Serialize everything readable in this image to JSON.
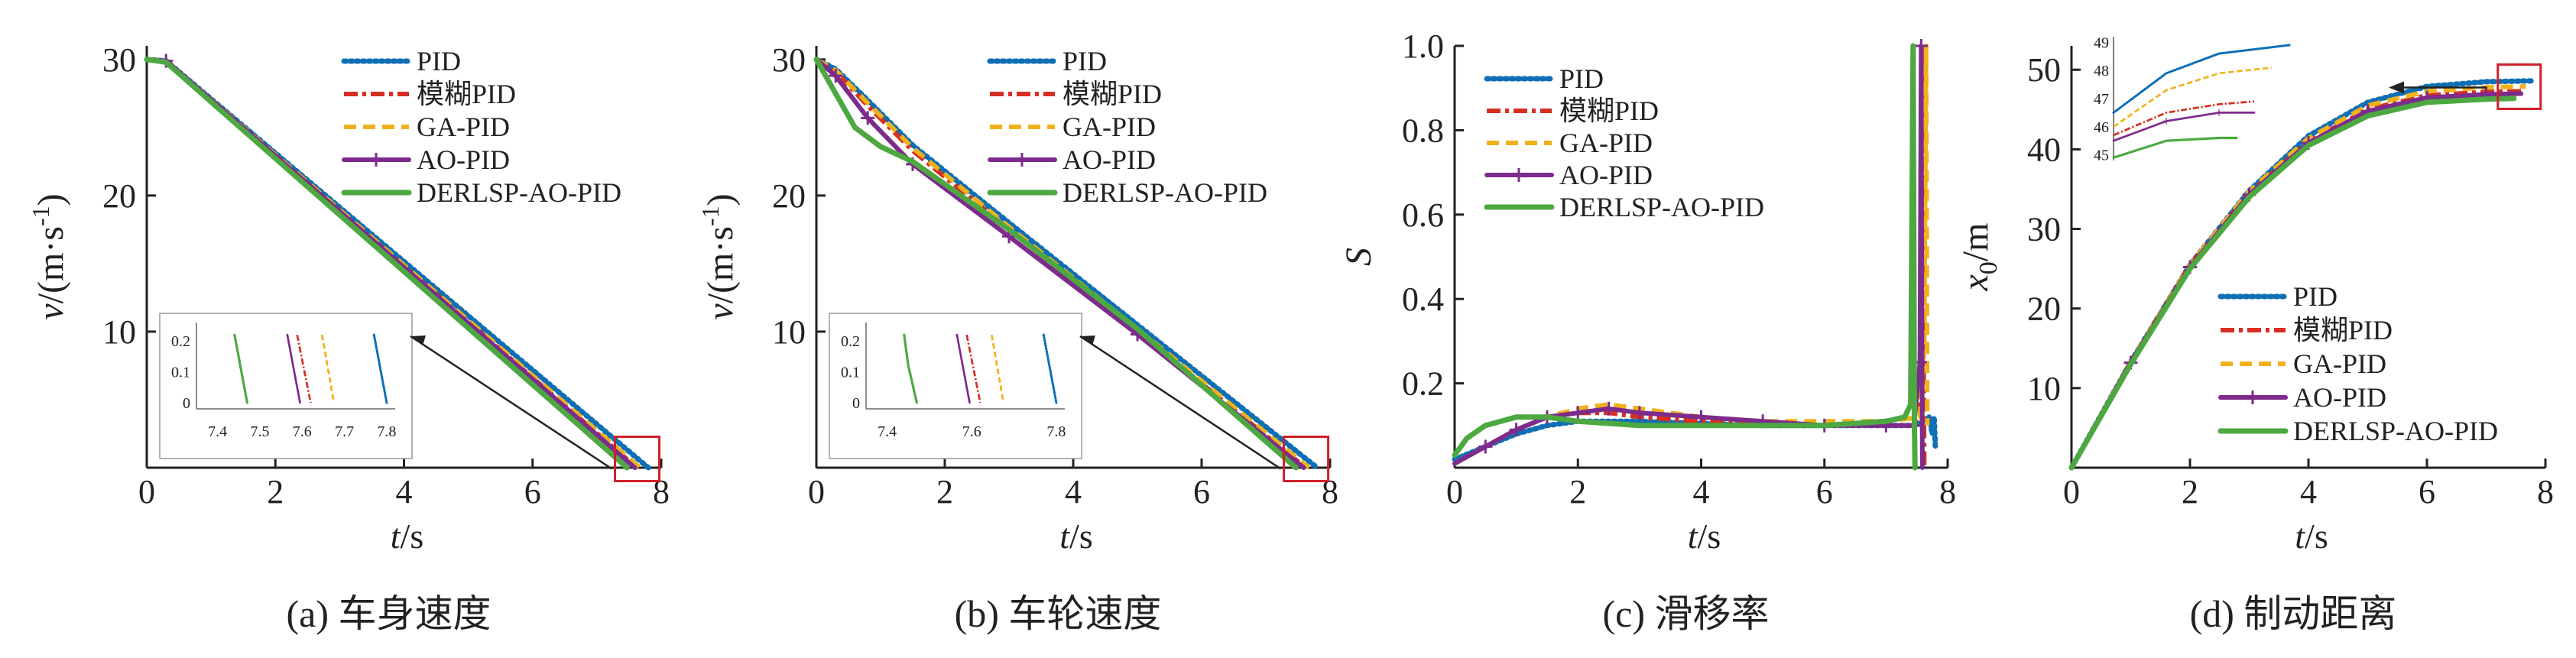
{
  "colors": {
    "PID": "#0e6fb5",
    "模糊PID": "#d62f22",
    "GA-PID": "#f0b11a",
    "AO-PID": "#7d2b8c",
    "DERLSP-AO-PID": "#4da841",
    "box": "#d0202a",
    "axis": "#222222"
  },
  "chart_data": [
    {
      "id": "a",
      "type": "line",
      "caption": "(a) 车身速度",
      "xlabel": "t/s",
      "ylabel": "v/(m·s-1)",
      "xlim": [
        0,
        8
      ],
      "ylim": [
        0,
        31
      ],
      "xticks": [
        "0",
        "2",
        "4",
        "6",
        "8"
      ],
      "yticks": [
        "10",
        "20",
        "30"
      ],
      "legend": {
        "position": "top-right",
        "entries": [
          "PID",
          "模糊PID",
          "GA-PID",
          "AO-PID",
          "DERLSP-AO-PID"
        ]
      },
      "series": [
        {
          "name": "PID",
          "x": [
            0,
            0.3,
            7.8
          ],
          "y": [
            30,
            29.9,
            0
          ]
        },
        {
          "name": "模糊PID",
          "x": [
            0,
            0.3,
            7.62
          ],
          "y": [
            30,
            29.9,
            0
          ]
        },
        {
          "name": "GA-PID",
          "x": [
            0,
            0.3,
            7.67
          ],
          "y": [
            30,
            29.9,
            0
          ]
        },
        {
          "name": "AO-PID",
          "x": [
            0,
            0.3,
            7.59
          ],
          "y": [
            30,
            29.9,
            0
          ]
        },
        {
          "name": "DERLSP-AO-PID",
          "x": [
            0,
            0.3,
            7.47
          ],
          "y": [
            30,
            29.8,
            0
          ]
        }
      ],
      "inset": {
        "xticks": [
          "7.4",
          "7.5",
          "7.6",
          "7.7",
          "7.8"
        ],
        "yticks": [
          "0",
          "0.1",
          "0.2"
        ],
        "xlim": [
          7.35,
          7.82
        ],
        "ylim": [
          -0.02,
          0.24
        ],
        "series": [
          {
            "name": "PID",
            "x": [
              7.77,
              7.8
            ],
            "y": [
              0.22,
              0
            ]
          },
          {
            "name": "模糊PID",
            "x": [
              7.588,
              7.62
            ],
            "y": [
              0.22,
              0
            ]
          },
          {
            "name": "GA-PID",
            "x": [
              7.647,
              7.675
            ],
            "y": [
              0.22,
              0
            ]
          },
          {
            "name": "AO-PID",
            "x": [
              7.565,
              7.595
            ],
            "y": [
              0.22,
              0
            ]
          },
          {
            "name": "DERLSP-AO-PID",
            "x": [
              7.44,
              7.47
            ],
            "y": [
              0.22,
              0
            ]
          }
        ]
      }
    },
    {
      "id": "b",
      "type": "line",
      "caption": "(b) 车轮速度",
      "xlabel": "t/s",
      "ylabel": "v/(m·s-1)",
      "xlim": [
        0,
        8
      ],
      "ylim": [
        0,
        31
      ],
      "xticks": [
        "0",
        "2",
        "4",
        "6",
        "8"
      ],
      "yticks": [
        "10",
        "20",
        "30"
      ],
      "legend": {
        "position": "top-right",
        "entries": [
          "PID",
          "模糊PID",
          "GA-PID",
          "AO-PID",
          "DERLSP-AO-PID"
        ]
      },
      "series": [
        {
          "name": "PID",
          "x": [
            0,
            0.3,
            0.8,
            1.5,
            3,
            5,
            7.8
          ],
          "y": [
            30,
            29.3,
            27,
            23.7,
            18,
            10.5,
            0
          ]
        },
        {
          "name": "模糊PID",
          "x": [
            0,
            0.3,
            0.8,
            1.5,
            3,
            5,
            7.62
          ],
          "y": [
            30,
            29.1,
            26.6,
            23.3,
            17.5,
            10,
            0
          ]
        },
        {
          "name": "GA-PID",
          "x": [
            0,
            0.3,
            0.8,
            1.5,
            3,
            5,
            7.67
          ],
          "y": [
            30,
            29.2,
            26.8,
            23.5,
            17.7,
            10.2,
            0
          ]
        },
        {
          "name": "AO-PID",
          "x": [
            0,
            0.3,
            0.8,
            1.5,
            3,
            5,
            7.59
          ],
          "y": [
            30,
            28.8,
            25.7,
            22.3,
            17,
            9.8,
            0
          ]
        },
        {
          "name": "DERLSP-AO-PID",
          "x": [
            0,
            0.3,
            0.6,
            1,
            1.5,
            3,
            5,
            7.47
          ],
          "y": [
            30,
            27.5,
            25,
            23.6,
            22.5,
            17.5,
            10.2,
            0
          ]
        }
      ],
      "inset": {
        "xticks": [
          "7.4",
          "7.6",
          "7.8"
        ],
        "yticks": [
          "0",
          "0.1",
          "0.2"
        ],
        "xlim": [
          7.35,
          7.82
        ],
        "ylim": [
          -0.02,
          0.24
        ],
        "series": [
          {
            "name": "PID",
            "x": [
              7.77,
              7.8
            ],
            "y": [
              0.22,
              0
            ]
          },
          {
            "name": "模糊PID",
            "x": [
              7.588,
              7.62
            ],
            "y": [
              0.22,
              0
            ]
          },
          {
            "name": "GA-PID",
            "x": [
              7.647,
              7.675
            ],
            "y": [
              0.22,
              0
            ]
          },
          {
            "name": "AO-PID",
            "x": [
              7.565,
              7.595
            ],
            "y": [
              0.22,
              0
            ]
          },
          {
            "name": "DERLSP-AO-PID",
            "x": [
              7.44,
              7.45,
              7.47
            ],
            "y": [
              0.22,
              0.12,
              0
            ]
          }
        ]
      }
    },
    {
      "id": "c",
      "type": "line",
      "caption": "(c) 滑移率",
      "xlabel": "t/s",
      "ylabel": "S",
      "xlim": [
        0,
        8
      ],
      "ylim": [
        0,
        1
      ],
      "xticks": [
        "0",
        "2",
        "4",
        "6",
        "8"
      ],
      "yticks": [
        "0.2",
        "0.4",
        "0.6",
        "0.8",
        "1.0"
      ],
      "legend": {
        "position": "top-left",
        "entries": [
          "PID",
          "模糊PID",
          "GA-PID",
          "AO-PID",
          "DERLSP-AO-PID"
        ]
      },
      "series": [
        {
          "name": "PID",
          "x": [
            0,
            0.5,
            1,
            1.5,
            2,
            2.5,
            3,
            4,
            5,
            6,
            7,
            7.5,
            7.7,
            7.75,
            7.78,
            7.8
          ],
          "y": [
            0.02,
            0.05,
            0.08,
            0.1,
            0.11,
            0.11,
            0.11,
            0.105,
            0.1,
            0.1,
            0.1,
            0.1,
            0.12,
            0.08,
            0.12,
            0.05
          ]
        },
        {
          "name": "模糊PID",
          "x": [
            0,
            0.5,
            1,
            1.5,
            2,
            2.5,
            3,
            4,
            5,
            6,
            7,
            7.4,
            7.55,
            7.58,
            7.6,
            7.62
          ],
          "y": [
            0.01,
            0.05,
            0.09,
            0.12,
            0.13,
            0.13,
            0.12,
            0.11,
            0.1,
            0.1,
            0.1,
            0.1,
            0.12,
            1.0,
            0.5,
            0.0
          ]
        },
        {
          "name": "GA-PID",
          "x": [
            0,
            0.5,
            1,
            1.5,
            2,
            2.5,
            3,
            3.5,
            4,
            5,
            6,
            7,
            7.55,
            7.62,
            7.65,
            7.67
          ],
          "y": [
            0.01,
            0.05,
            0.09,
            0.12,
            0.14,
            0.15,
            0.14,
            0.13,
            0.12,
            0.11,
            0.11,
            0.11,
            0.12,
            0.3,
            1.0,
            0.1
          ]
        },
        {
          "name": "AO-PID",
          "x": [
            0,
            0.5,
            1,
            1.5,
            2,
            2.5,
            3,
            4,
            5,
            6,
            7,
            7.45,
            7.55,
            7.57,
            7.59
          ],
          "y": [
            0.01,
            0.05,
            0.09,
            0.12,
            0.13,
            0.14,
            0.13,
            0.12,
            0.11,
            0.1,
            0.1,
            0.1,
            0.25,
            1.0,
            0.0
          ]
        },
        {
          "name": "DERLSP-AO-PID",
          "x": [
            0,
            0.2,
            0.5,
            1,
            1.5,
            2,
            3,
            4,
            5,
            6,
            7,
            7.3,
            7.4,
            7.44,
            7.46,
            7.47
          ],
          "y": [
            0.03,
            0.07,
            0.1,
            0.12,
            0.12,
            0.11,
            0.1,
            0.1,
            0.1,
            0.1,
            0.11,
            0.12,
            0.15,
            1.0,
            0.1,
            0.0
          ]
        }
      ]
    },
    {
      "id": "d",
      "type": "line",
      "caption": "(d) 制动距离",
      "xlabel": "t/s",
      "ylabel": "x0/m",
      "xlim": [
        0,
        8
      ],
      "ylim": [
        0,
        53
      ],
      "xticks": [
        "0",
        "2",
        "4",
        "6",
        "8"
      ],
      "yticks": [
        "10",
        "20",
        "30",
        "40",
        "50"
      ],
      "legend": {
        "position": "bottom-right",
        "entries": [
          "PID",
          "模糊PID",
          "GA-PID",
          "AO-PID",
          "DERLSP-AO-PID"
        ]
      },
      "series": [
        {
          "name": "PID",
          "x": [
            0,
            1,
            2,
            3,
            4,
            5,
            6,
            7,
            7.8
          ],
          "y": [
            0,
            13.3,
            25.5,
            34.8,
            41.7,
            45.9,
            47.9,
            48.5,
            48.6
          ]
        },
        {
          "name": "模糊PID",
          "x": [
            0,
            1,
            2,
            3,
            4,
            5,
            6,
            7,
            7.62
          ],
          "y": [
            0,
            13.3,
            25.5,
            34.5,
            41,
            45,
            46.8,
            47.2,
            47.3
          ]
        },
        {
          "name": "GA-PID",
          "x": [
            0,
            1,
            2,
            3,
            4,
            5,
            6,
            7,
            7.67
          ],
          "y": [
            0,
            13.3,
            25.5,
            34.7,
            41.4,
            45.5,
            47.3,
            47.8,
            47.9
          ]
        },
        {
          "name": "AO-PID",
          "x": [
            0,
            1,
            2,
            3,
            4,
            5,
            6,
            7,
            7.59
          ],
          "y": [
            0,
            13.2,
            25.2,
            34.3,
            40.8,
            44.8,
            46.5,
            46.9,
            47
          ]
        },
        {
          "name": "DERLSP-AO-PID",
          "x": [
            0,
            1,
            2,
            3,
            4,
            5,
            6,
            7,
            7.47
          ],
          "y": [
            0,
            13,
            25,
            34,
            40.5,
            44.2,
            45.9,
            46.3,
            46.4
          ]
        }
      ],
      "inset": {
        "yticks": [
          "45",
          "46",
          "47",
          "48",
          "49"
        ],
        "ylim": [
          44.8,
          49.2
        ],
        "series": [
          {
            "name": "PID",
            "x": [
              0,
              0.3,
              0.6,
              1
            ],
            "y": [
              46.5,
              47.9,
              48.6,
              48.9
            ]
          },
          {
            "name": "GA-PID",
            "x": [
              0,
              0.3,
              0.6,
              0.9
            ],
            "y": [
              46.0,
              47.3,
              47.9,
              48.1
            ]
          },
          {
            "name": "模糊PID",
            "x": [
              0,
              0.3,
              0.6,
              0.8
            ],
            "y": [
              45.7,
              46.5,
              46.8,
              46.9
            ]
          },
          {
            "name": "AO-PID",
            "x": [
              0,
              0.3,
              0.6,
              0.8
            ],
            "y": [
              45.5,
              46.2,
              46.5,
              46.5
            ]
          },
          {
            "name": "DERLSP-AO-PID",
            "x": [
              0,
              0.3,
              0.6,
              0.7
            ],
            "y": [
              44.9,
              45.5,
              45.6,
              45.6
            ]
          }
        ]
      }
    }
  ]
}
